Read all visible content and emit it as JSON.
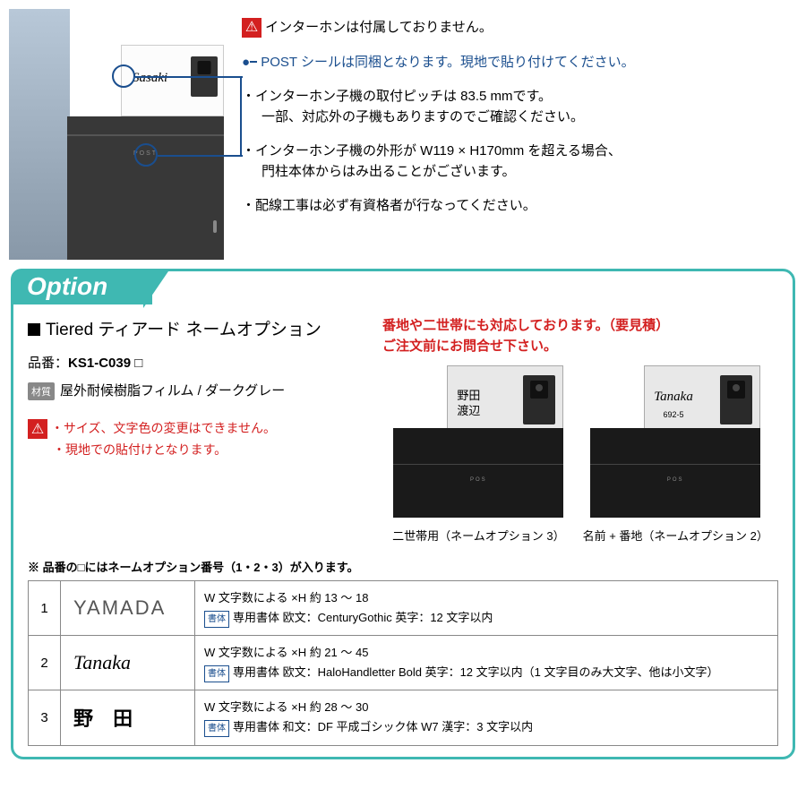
{
  "top": {
    "warn1": "インターホンは付属しておりません。",
    "blue": "POST シールは同梱となります。現地で貼り付けてください。",
    "note1a": "・インターホン子機の取付ピッチは 83.5 mmです。",
    "note1b": "一部、対応外の子機もありますのでご確認ください。",
    "note2a": "・インターホン子機の外形が W119 × H170mm を超える場合、",
    "note2b": "門柱本体からはみ出ることがございます。",
    "note3": "・配線工事は必ず有資格者が行なってください。",
    "productName": "Sasaki",
    "postLabel": "POST"
  },
  "option": {
    "tab": "Option",
    "title": "Tiered ティアード ネームオプション",
    "partLabel": "品番：",
    "partNum": "KS1-C039 □",
    "matBadge": "材質",
    "material": "屋外耐候樹脂フィルム / ダークグレー",
    "red1": "・サイズ、文字色の変更はできません。",
    "red2": "・現地での貼付けとなります。",
    "redHeader1": "番地や二世帯にも対応しております。（要見積）",
    "redHeader2": "ご注文前にお問合せ下さい。",
    "mb1": {
      "name1": "野田",
      "name2": "渡辺",
      "post": "POS",
      "caption": "二世帯用（ネームオプション 3）"
    },
    "mb2": {
      "name": "Tanaka",
      "sub": "692-5",
      "post": "POS",
      "caption": "名前 + 番地（ネームオプション 2）"
    },
    "tableNote": "※ 品番の□にはネームオプション番号（1・2・3）が入ります。"
  },
  "table": {
    "fontBadge": "書体",
    "rows": [
      {
        "n": "1",
        "sample": "YAMADA",
        "cls": "sample1",
        "l1": "W 文字数による ×H 約 13 〜 18",
        "l2": "専用書体  欧文：CenturyGothic   英字：12 文字以内"
      },
      {
        "n": "2",
        "sample": "Tanaka",
        "cls": "sample2",
        "l1": "W 文字数による ×H 約 21 〜 45",
        "l2": "専用書体  欧文：HaloHandletter Bold   英字：12 文字以内（1 文字目のみ大文字、他は小文字）"
      },
      {
        "n": "3",
        "sample": "野 田",
        "cls": "sample3",
        "l1": "W 文字数による ×H 約 28 〜 30",
        "l2": "専用書体  和文：DF 平成ゴシック体 W7   漢字：3 文字以内"
      }
    ]
  },
  "colors": {
    "accent": "#3fb8b2",
    "blue": "#1a4e8e",
    "red": "#d32020"
  }
}
